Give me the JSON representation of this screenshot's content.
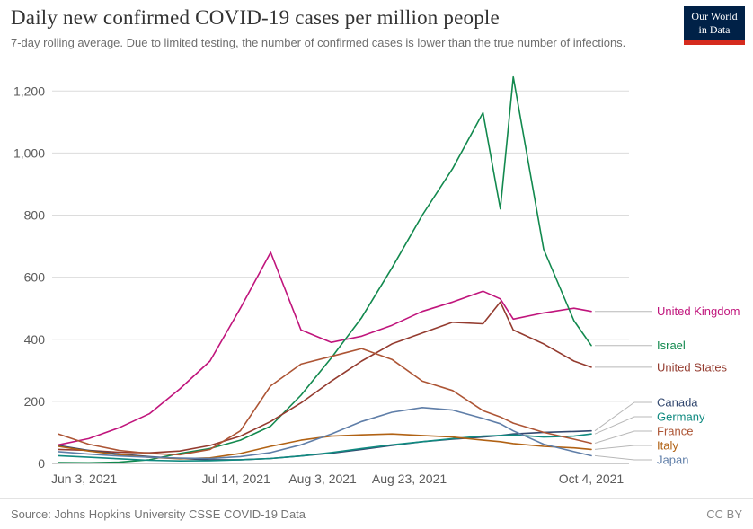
{
  "header": {
    "title": "Daily new confirmed COVID-19 cases per million people",
    "subtitle": "7-day rolling average. Due to limited testing, the number of confirmed cases is lower than the true number of infections."
  },
  "logo": {
    "line1": "Our World",
    "line2": "in Data",
    "bg_color": "#002147",
    "stripe_color": "#d52b1e"
  },
  "footer": {
    "source": "Source: Johns Hopkins University CSSE COVID-19 Data",
    "license": "CC BY"
  },
  "chart_data": {
    "type": "line",
    "title": "Daily new confirmed COVID-19 cases per million people",
    "grid": true,
    "legend_position": "right-end-labels",
    "xlim_days": [
      0,
      123
    ],
    "ylim": [
      0,
      1250
    ],
    "x_dates": [
      "Jun 3",
      "Jun 10",
      "Jun 17",
      "Jun 24",
      "Jul 1",
      "Jul 8",
      "Jul 15",
      "Jul 22",
      "Jul 29",
      "Aug 5",
      "Aug 12",
      "Aug 19",
      "Aug 26",
      "Sep 2",
      "Sep 9",
      "Sep 13",
      "Sep 16",
      "Sep 23",
      "Sep 30",
      "Oct 4"
    ],
    "x_days": [
      0,
      7,
      14,
      21,
      28,
      35,
      42,
      49,
      56,
      63,
      70,
      77,
      84,
      91,
      98,
      102,
      105,
      112,
      119,
      123
    ],
    "x_ticks": [
      {
        "label": "Jun 3, 2021",
        "day": 0
      },
      {
        "label": "Jul 14, 2021",
        "day": 41
      },
      {
        "label": "Aug 3, 2021",
        "day": 61
      },
      {
        "label": "Aug 23, 2021",
        "day": 81
      },
      {
        "label": "Oct 4, 2021",
        "day": 123
      }
    ],
    "y_ticks": [
      {
        "value": 0,
        "label": "0"
      },
      {
        "value": 200,
        "label": "200"
      },
      {
        "value": 400,
        "label": "400"
      },
      {
        "value": 600,
        "label": "600"
      },
      {
        "value": 800,
        "label": "800"
      },
      {
        "value": 1000,
        "label": "1,000"
      },
      {
        "value": 1200,
        "label": "1,200"
      }
    ],
    "series": [
      {
        "name": "United Kingdom",
        "color": "#c0157c",
        "values": [
          60,
          80,
          115,
          160,
          240,
          330,
          500,
          680,
          430,
          390,
          410,
          445,
          490,
          520,
          555,
          530,
          465,
          485,
          500,
          490
        ]
      },
      {
        "name": "Israel",
        "color": "#12894e",
        "values": [
          3,
          2,
          4,
          12,
          32,
          48,
          75,
          120,
          220,
          340,
          470,
          630,
          800,
          950,
          1130,
          820,
          1245,
          690,
          460,
          380
        ]
      },
      {
        "name": "United States",
        "color": "#943b2f",
        "values": [
          45,
          42,
          36,
          34,
          40,
          58,
          88,
          135,
          195,
          265,
          330,
          385,
          420,
          455,
          450,
          520,
          430,
          385,
          330,
          310
        ]
      },
      {
        "name": "Canada",
        "color": "#33486f",
        "values": [
          58,
          42,
          30,
          22,
          16,
          12,
          12,
          16,
          24,
          33,
          45,
          58,
          70,
          78,
          85,
          90,
          95,
          100,
          103,
          105
        ]
      },
      {
        "name": "Germany",
        "color": "#108a80",
        "values": [
          25,
          20,
          15,
          10,
          8,
          9,
          12,
          16,
          24,
          35,
          48,
          60,
          70,
          80,
          88,
          90,
          92,
          85,
          88,
          95
        ]
      },
      {
        "name": "France",
        "color": "#ad5535",
        "values": [
          95,
          62,
          42,
          32,
          28,
          45,
          105,
          250,
          320,
          345,
          370,
          335,
          265,
          235,
          170,
          150,
          130,
          100,
          78,
          65
        ]
      },
      {
        "name": "Italy",
        "color": "#b16214",
        "values": [
          55,
          40,
          28,
          20,
          15,
          18,
          32,
          55,
          75,
          88,
          92,
          95,
          90,
          85,
          75,
          70,
          64,
          55,
          50,
          45
        ]
      },
      {
        "name": "Japan",
        "color": "#5f7ea8",
        "values": [
          38,
          30,
          24,
          20,
          17,
          16,
          22,
          35,
          60,
          95,
          135,
          165,
          180,
          172,
          145,
          128,
          105,
          62,
          38,
          25
        ]
      }
    ]
  }
}
